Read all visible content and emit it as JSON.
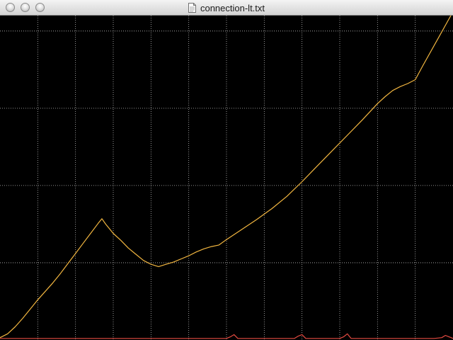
{
  "window": {
    "title": "connection-lt.txt",
    "title_icon": "text-document-icon",
    "buttons": [
      "close-button",
      "minimize-button",
      "zoom-button"
    ]
  },
  "chart_data": {
    "type": "line",
    "title": "",
    "xlabel": "",
    "ylabel": "",
    "grid": true,
    "grid_style": "dotted",
    "background_color": "#000000",
    "grid_color": "#bbbbbb",
    "xlim": [
      0,
      12
    ],
    "ylim": [
      0,
      4.2
    ],
    "series": [
      {
        "color": "#f2b640",
        "x": [
          0,
          0.2,
          0.4,
          0.6,
          0.8,
          1.0,
          1.2,
          1.4,
          1.6,
          1.8,
          2.0,
          2.2,
          2.4,
          2.6,
          2.7,
          2.8,
          3.0,
          3.2,
          3.4,
          3.6,
          3.8,
          4.0,
          4.2,
          4.4,
          4.6,
          4.8,
          5.0,
          5.2,
          5.4,
          5.6,
          5.8,
          6.0,
          6.4,
          6.8,
          7.2,
          7.6,
          8.0,
          8.4,
          8.8,
          9.2,
          9.6,
          10.0,
          10.2,
          10.4,
          10.6,
          10.8,
          11.0,
          11.2,
          11.6,
          12.0
        ],
        "y": [
          0.03,
          0.08,
          0.17,
          0.28,
          0.4,
          0.52,
          0.63,
          0.74,
          0.86,
          0.99,
          1.12,
          1.25,
          1.38,
          1.51,
          1.57,
          1.5,
          1.38,
          1.29,
          1.19,
          1.11,
          1.03,
          0.98,
          0.95,
          0.98,
          1.01,
          1.05,
          1.09,
          1.14,
          1.18,
          1.21,
          1.23,
          1.3,
          1.43,
          1.56,
          1.7,
          1.86,
          2.05,
          2.25,
          2.45,
          2.65,
          2.85,
          3.06,
          3.15,
          3.23,
          3.28,
          3.32,
          3.37,
          3.55,
          3.9,
          4.25
        ]
      },
      {
        "color": "#e44a40",
        "x": [
          0,
          1,
          2,
          3,
          4,
          5,
          6,
          6.1,
          6.2,
          6.3,
          7,
          7.8,
          7.9,
          8.0,
          8.1,
          9,
          9.1,
          9.2,
          9.3,
          10,
          11,
          11.5,
          11.7,
          11.8,
          12
        ],
        "y": [
          0.02,
          0.02,
          0.02,
          0.02,
          0.02,
          0.02,
          0.02,
          0.04,
          0.07,
          0.02,
          0.02,
          0.02,
          0.05,
          0.07,
          0.02,
          0.02,
          0.04,
          0.08,
          0.02,
          0.02,
          0.02,
          0.02,
          0.03,
          0.06,
          0.02
        ]
      }
    ]
  }
}
